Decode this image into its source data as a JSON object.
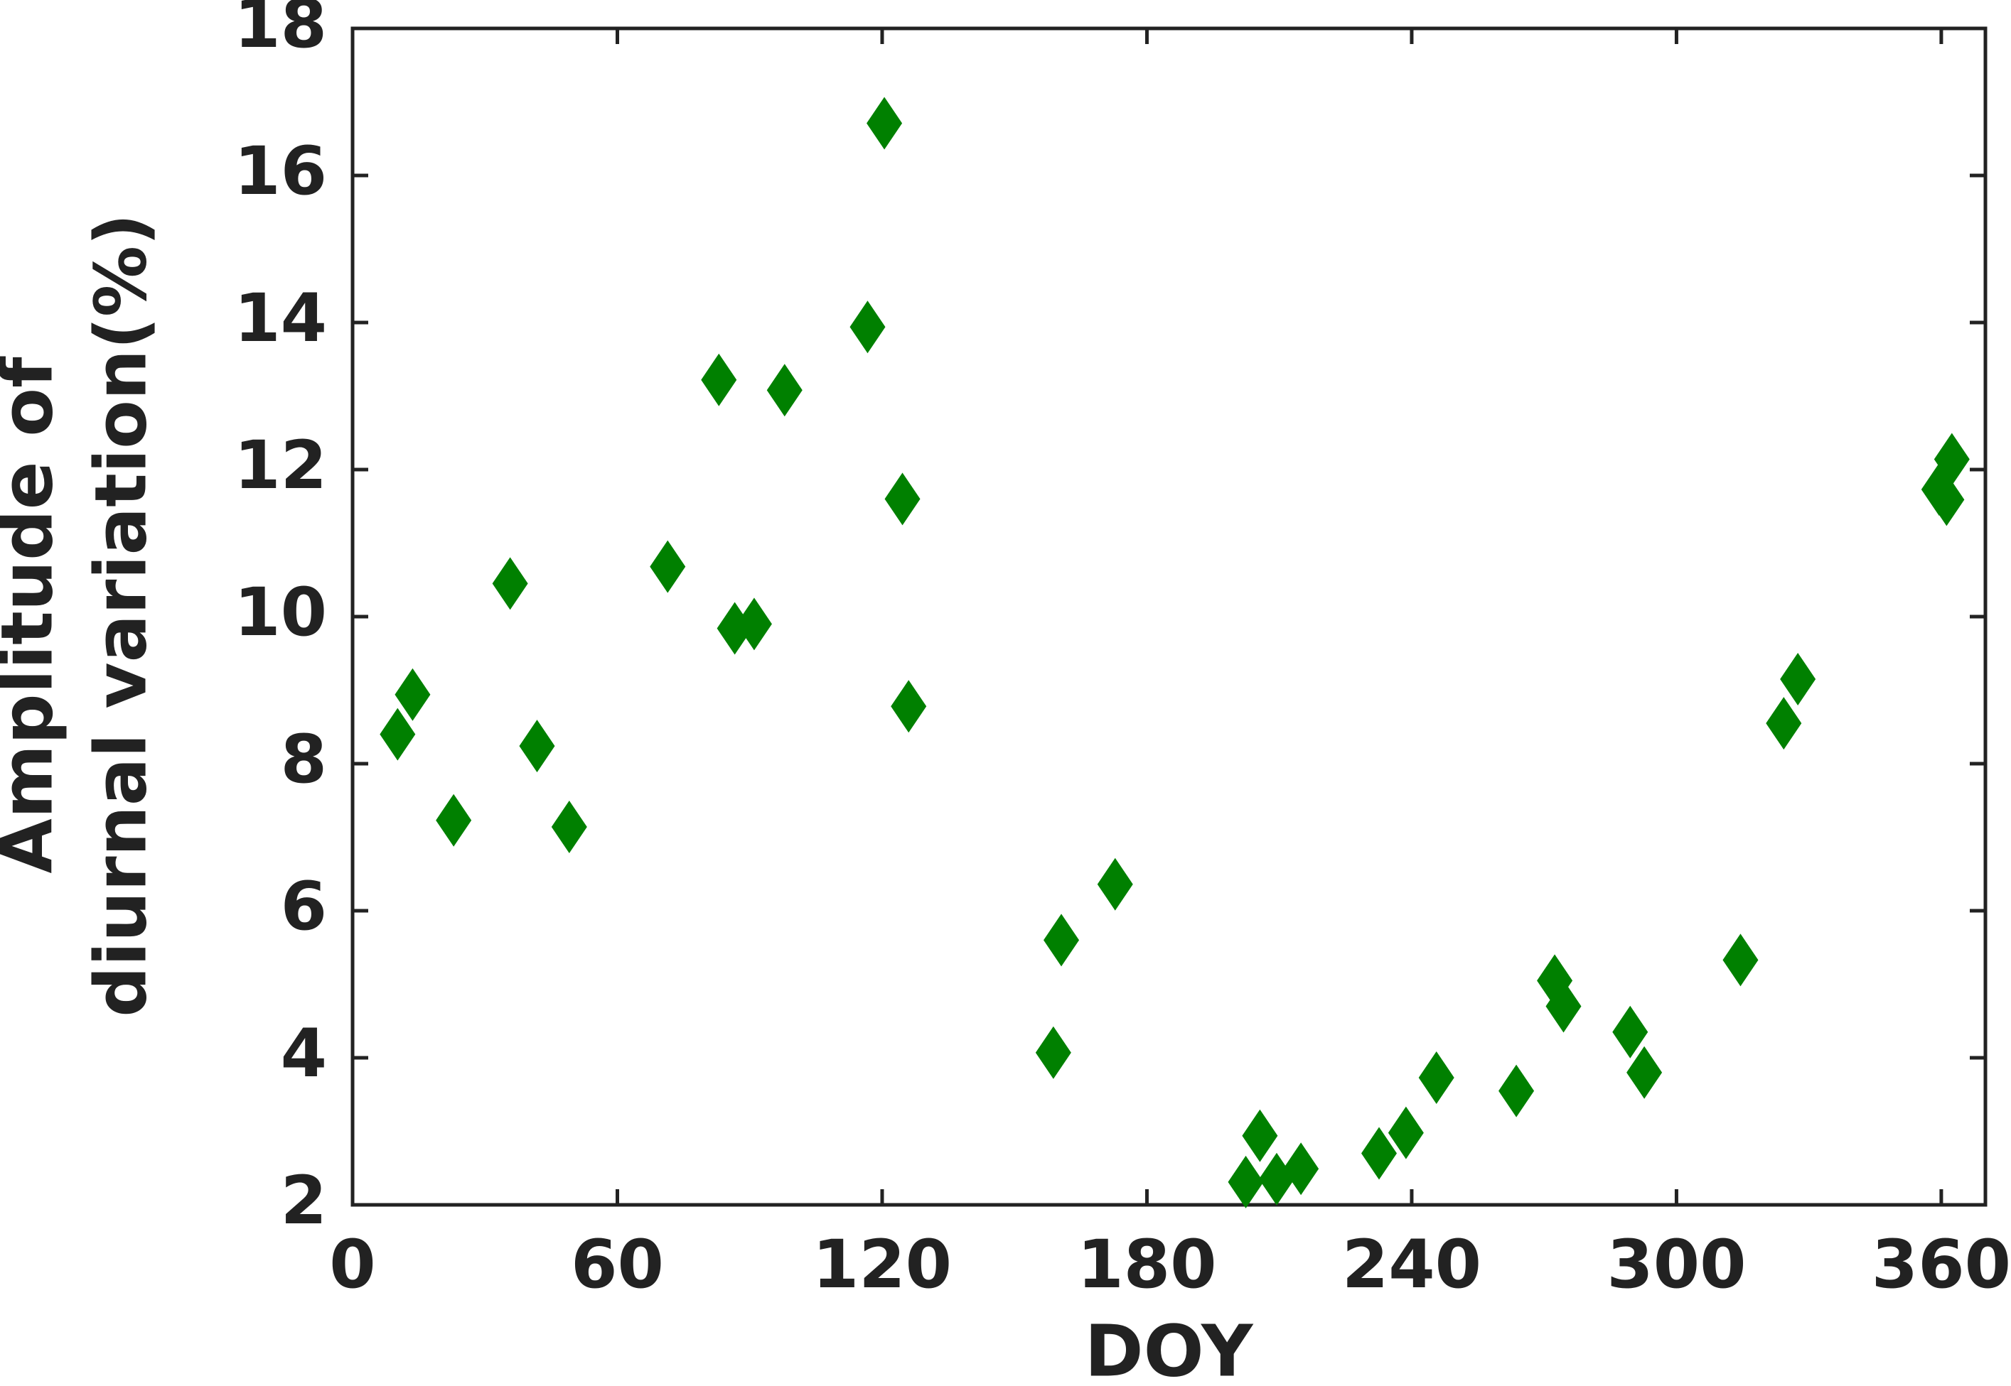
{
  "chart_data": {
    "type": "scatter",
    "xlabel": "DOY",
    "ylabel": [
      "Amplitude of",
      "diurnal variation(%)"
    ],
    "color": "#008000",
    "marker": "diamond",
    "x": [
      10.2,
      13.6,
      22.9,
      35.7,
      41.8,
      49.1,
      71.4,
      83.0,
      86.6,
      91.0,
      97.9,
      116.7,
      120.5,
      124.6,
      126.0,
      158.8,
      160.6,
      172.8,
      202.4,
      205.6,
      209.4,
      214.9,
      232.6,
      238.7,
      245.6,
      263.7,
      272.4,
      274.4,
      289.5,
      292.7,
      314.5,
      324.3,
      327.5,
      359.5,
      361.2,
      362.4
    ],
    "values": [
      8.4,
      8.94,
      7.23,
      10.45,
      8.24,
      7.14,
      10.68,
      13.22,
      9.84,
      9.9,
      13.08,
      13.94,
      16.71,
      11.6,
      8.78,
      4.07,
      5.6,
      6.36,
      2.31,
      2.94,
      2.35,
      2.49,
      2.7,
      2.98,
      3.73,
      3.55,
      5.05,
      4.7,
      4.35,
      3.8,
      5.33,
      8.55,
      9.15,
      11.73,
      11.59,
      12.14
    ],
    "xlim": [
      0,
      370
    ],
    "xticks": [
      0,
      60,
      120,
      180,
      240,
      300,
      360
    ],
    "ylim": [
      2,
      18
    ],
    "yticks": [
      2,
      4,
      6,
      8,
      10,
      12,
      14,
      16,
      18
    ]
  }
}
